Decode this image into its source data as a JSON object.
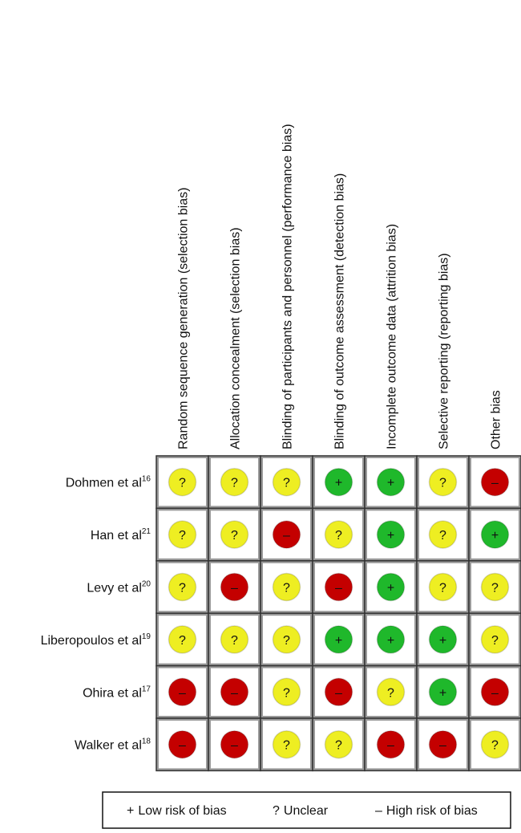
{
  "columns": [
    "Random sequence generation (selection bias)",
    "Allocation concealment (selection bias)",
    "Blinding of participants and personnel (performance bias)",
    "Blinding of outcome assessment (detection bias)",
    "Incomplete outcome data (attrition bias)",
    "Selective reporting (reporting bias)",
    "Other bias"
  ],
  "rows": [
    {
      "name": "Dohmen et al",
      "ref": "16",
      "cells": [
        "?",
        "?",
        "?",
        "+",
        "+",
        "?",
        "–"
      ]
    },
    {
      "name": "Han et al",
      "ref": "21",
      "cells": [
        "?",
        "?",
        "–",
        "?",
        "+",
        "?",
        "+"
      ]
    },
    {
      "name": "Levy et al",
      "ref": "20",
      "cells": [
        "?",
        "–",
        "?",
        "–",
        "+",
        "?",
        "?"
      ]
    },
    {
      "name": "Liberopoulos et al",
      "ref": "19",
      "cells": [
        "?",
        "?",
        "?",
        "+",
        "+",
        "+",
        "?"
      ]
    },
    {
      "name": "Ohira et al",
      "ref": "17",
      "cells": [
        "–",
        "–",
        "?",
        "–",
        "?",
        "+",
        "–"
      ]
    },
    {
      "name": "Walker et al",
      "ref": "18",
      "cells": [
        "–",
        "–",
        "?",
        "?",
        "–",
        "–",
        "?"
      ]
    }
  ],
  "legend": [
    {
      "symbol": "+",
      "label": "Low risk of bias",
      "color": "#1fb82b"
    },
    {
      "symbol": "?",
      "label": "Unclear",
      "color": "#eeee22"
    },
    {
      "symbol": "–",
      "label": "High risk of bias",
      "color": "#c40000"
    }
  ]
}
